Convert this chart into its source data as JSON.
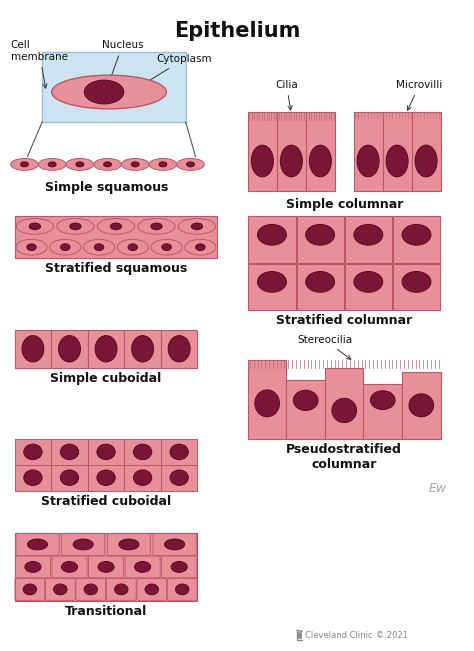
{
  "title": "Epithelium",
  "bg_color": "#ffffff",
  "cell_fill": "#e8909a",
  "cell_fill2": "#d4788a",
  "cell_edge": "#b85868",
  "nucleus_fill": "#7a1535",
  "nucleus_edge": "#5a0a25",
  "cilia_color": "#b86878",
  "light_fill": "#cce4f0",
  "light_edge": "#99c0d8",
  "title_fontsize": 15,
  "label_fontsize": 9,
  "annot_fontsize": 7.5,
  "footer_fontsize": 6,
  "labels": {
    "simple_squamous": "Simple squamous",
    "stratified_squamous": "Stratified squamous",
    "simple_cuboidal": "Simple cuboidal",
    "stratified_cuboidal": "Stratified cuboidal",
    "transitional": "Transitional",
    "simple_columnar": "Simple columnar",
    "stratified_columnar": "Stratified columnar",
    "pseudostratified": "Pseudostratified\ncolumnar"
  },
  "annotations": {
    "cell_membrane": "Cell\nmembrane",
    "nucleus": "Nucleus",
    "cytoplasm": "Cytoplasm",
    "cilia": "Cilia",
    "microvilli": "Microvilli",
    "stereocilia": "Stereocilia"
  }
}
